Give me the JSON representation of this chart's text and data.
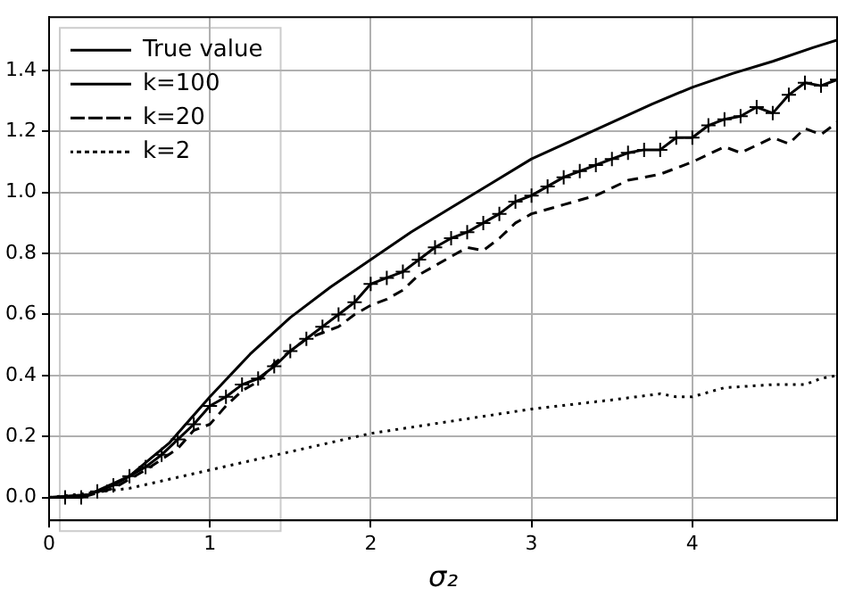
{
  "chart_data": {
    "type": "line",
    "xlabel": "σ₂",
    "xlim": [
      0,
      4.9
    ],
    "ylim": [
      -0.075,
      1.575
    ],
    "xticks": [
      0,
      1,
      2,
      3,
      4
    ],
    "yticks": [
      {
        "value": 0,
        "label": "0.0"
      },
      {
        "value": 0.2,
        "label": "0.2"
      },
      {
        "value": 0.4,
        "label": "0.4"
      },
      {
        "value": 0.6,
        "label": "0.6"
      },
      {
        "value": 0.8,
        "label": "0.8"
      },
      {
        "value": 1,
        "label": "1.0"
      },
      {
        "value": 1.2,
        "label": "1.2"
      },
      {
        "value": 1.4,
        "label": "1.4"
      }
    ],
    "grid": true,
    "legend": "top left",
    "series": [
      {
        "name": "True value",
        "color": "#000000",
        "line_style": "solid",
        "marker": "none",
        "x": [
          0,
          0.25,
          0.5,
          0.75,
          1,
          1.25,
          1.5,
          1.75,
          2,
          2.25,
          2.5,
          2.75,
          3,
          3.25,
          3.5,
          3.75,
          4,
          4.25,
          4.5,
          4.75,
          4.9
        ],
        "values": [
          0,
          0.01,
          0.07,
          0.18,
          0.33,
          0.47,
          0.59,
          0.69,
          0.78,
          0.87,
          0.95,
          1.03,
          1.11,
          1.17,
          1.23,
          1.29,
          1.345,
          1.39,
          1.43,
          1.475,
          1.5
        ]
      },
      {
        "name": "k=100",
        "color": "#000000",
        "line_style": "solid",
        "marker": "cross",
        "x": [
          0,
          0.1,
          0.2,
          0.3,
          0.4,
          0.5,
          0.6,
          0.7,
          0.8,
          0.9,
          1,
          1.1,
          1.2,
          1.3,
          1.4,
          1.5,
          1.6,
          1.7,
          1.8,
          1.9,
          2,
          2.1,
          2.2,
          2.3,
          2.4,
          2.5,
          2.6,
          2.7,
          2.8,
          2.9,
          3,
          3.1,
          3.2,
          3.3,
          3.4,
          3.5,
          3.6,
          3.7,
          3.8,
          3.9,
          4,
          4.1,
          4.2,
          4.3,
          4.4,
          4.5,
          4.6,
          4.7,
          4.8,
          4.9
        ],
        "values": [
          0,
          0,
          0,
          0.02,
          0.04,
          0.07,
          0.1,
          0.14,
          0.19,
          0.24,
          0.3,
          0.33,
          0.37,
          0.39,
          0.43,
          0.48,
          0.52,
          0.56,
          0.6,
          0.64,
          0.7,
          0.72,
          0.74,
          0.78,
          0.82,
          0.85,
          0.87,
          0.9,
          0.93,
          0.97,
          0.99,
          1.02,
          1.05,
          1.07,
          1.09,
          1.11,
          1.13,
          1.14,
          1.14,
          1.18,
          1.18,
          1.22,
          1.24,
          1.25,
          1.28,
          1.26,
          1.32,
          1.36,
          1.35,
          1.37
        ]
      },
      {
        "name": "k=20",
        "color": "#000000",
        "line_style": "dashed",
        "marker": "none",
        "x": [
          0,
          0.2,
          0.4,
          0.6,
          0.8,
          0.9,
          1,
          1.1,
          1.2,
          1.3,
          1.4,
          1.5,
          1.6,
          1.7,
          1.8,
          1.9,
          2,
          2.1,
          2.2,
          2.3,
          2.4,
          2.5,
          2.6,
          2.7,
          2.8,
          2.9,
          3,
          3.2,
          3.4,
          3.6,
          3.8,
          4,
          4.2,
          4.3,
          4.5,
          4.6,
          4.7,
          4.8,
          4.9
        ],
        "values": [
          0,
          0,
          0.03,
          0.09,
          0.16,
          0.22,
          0.24,
          0.3,
          0.35,
          0.38,
          0.44,
          0.48,
          0.52,
          0.54,
          0.56,
          0.6,
          0.63,
          0.65,
          0.68,
          0.73,
          0.76,
          0.79,
          0.82,
          0.81,
          0.85,
          0.9,
          0.93,
          0.96,
          0.99,
          1.04,
          1.06,
          1.1,
          1.15,
          1.13,
          1.18,
          1.16,
          1.21,
          1.19,
          1.23
        ]
      },
      {
        "name": "k=2",
        "color": "#000000",
        "line_style": "dotted",
        "marker": "none",
        "x": [
          0,
          0.5,
          1,
          1.5,
          2,
          2.5,
          3,
          3.5,
          3.8,
          3.9,
          4,
          4.2,
          4.5,
          4.7,
          4.8,
          4.9
        ],
        "values": [
          0,
          0.03,
          0.09,
          0.15,
          0.21,
          0.25,
          0.29,
          0.32,
          0.34,
          0.33,
          0.33,
          0.36,
          0.37,
          0.37,
          0.39,
          0.4
        ]
      }
    ]
  }
}
